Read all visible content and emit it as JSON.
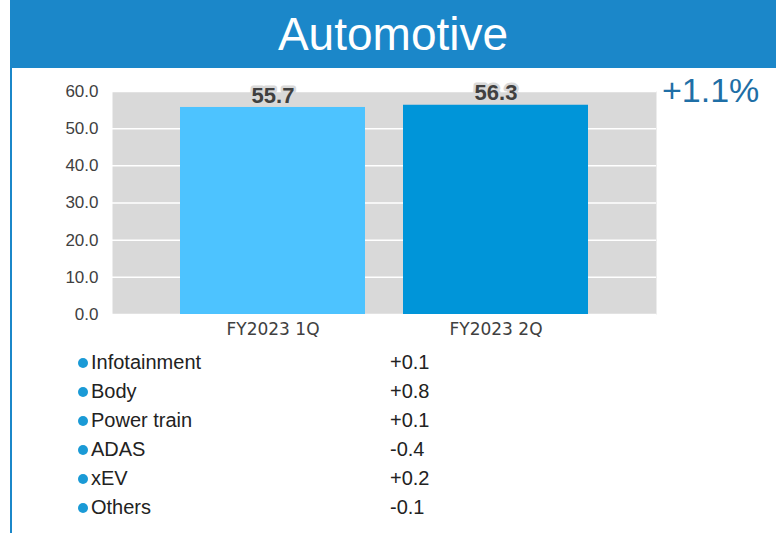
{
  "chart_data": {
    "type": "bar",
    "title": "Automotive",
    "categories": [
      "FY2023 1Q",
      "FY2023 2Q"
    ],
    "values": [
      55.7,
      56.3
    ],
    "colors": [
      "#4dc3ff",
      "#0095d9"
    ],
    "ylim": [
      0,
      60
    ],
    "yticks": [
      {
        "value": 0,
        "label": "0.0"
      },
      {
        "value": 10,
        "label": "10.0"
      },
      {
        "value": 20,
        "label": "20.0"
      },
      {
        "value": 30,
        "label": "30.0"
      },
      {
        "value": 40,
        "label": "40.0"
      },
      {
        "value": 50,
        "label": "50.0"
      },
      {
        "value": 60,
        "label": "60.0"
      }
    ],
    "grid": true,
    "data_labels": true,
    "annotation": "+1.1%",
    "breakdown": [
      {
        "name": "Infotainment",
        "value": 0.1,
        "label": "+0.1"
      },
      {
        "name": "Body",
        "value": 0.8,
        "label": "+0.8"
      },
      {
        "name": "Power train",
        "value": 0.1,
        "label": "+0.1"
      },
      {
        "name": "ADAS",
        "value": -0.4,
        "label": "-0.4"
      },
      {
        "name": "xEV",
        "value": 0.2,
        "label": "+0.2"
      },
      {
        "name": "Others",
        "value": -0.1,
        "label": "-0.1"
      }
    ]
  }
}
